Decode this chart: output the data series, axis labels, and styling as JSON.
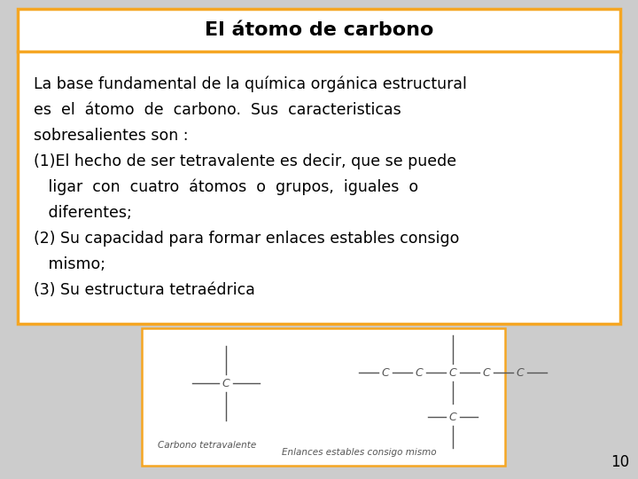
{
  "title": "El átomo de carbono",
  "title_fontsize": 16,
  "title_fontweight": "bold",
  "background_color": "#ffffff",
  "border_color": "#f5a623",
  "slide_bg": "#cccccc",
  "page_number": "10",
  "body_lines": [
    "La base fundamental de la química orgánica estructural",
    "es  el  átomo  de  carbono.  Sus  caracteristicas",
    "sobresalientes son :",
    "(1)El hecho de ser tetravalente es decir, que se puede",
    "   ligar  con  cuatro  átomos  o  grupos,  iguales  o",
    "   diferentes;",
    "(2) Su capacidad para formar enlaces estables consigo",
    "   mismo;",
    "(3) Su estructura tetraédrica"
  ],
  "body_fontsize": 12.5,
  "carbono_label": "Carbono tetravalente",
  "enlaces_label": "Enlances estables consigo mismo"
}
